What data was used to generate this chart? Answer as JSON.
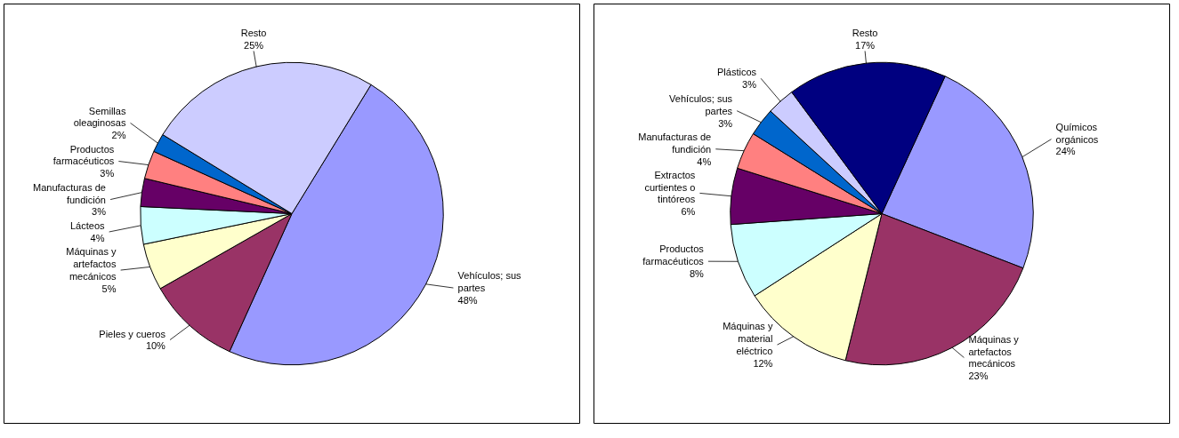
{
  "chart_data": [
    {
      "type": "pie",
      "categories": [
        "Vehículos; sus partes",
        "Pieles y cueros",
        "Máquinas y artefactos mecánicos",
        "Lácteos",
        "Manufacturas de fundición",
        "Productos farmacéuticos",
        "Semillas oleaginosas",
        "Resto"
      ],
      "values": [
        48,
        10,
        5,
        4,
        3,
        3,
        2,
        25
      ],
      "colors": [
        "#9999ff",
        "#993366",
        "#ffffcc",
        "#ccffff",
        "#660066",
        "#ff8080",
        "#0066cc",
        "#ccccff"
      ],
      "value_labels": [
        "48%",
        "10%",
        "5%",
        "4%",
        "3%",
        "3%",
        "2%",
        "25%"
      ]
    },
    {
      "type": "pie",
      "categories": [
        "Químicos orgánicos",
        "Máquinas y artefactos mecánicos",
        "Máquinas y material eléctrico",
        "Productos farmacéuticos",
        "Extractos curtientes o tintóreos",
        "Manufacturas de fundición",
        "Vehículos; sus partes",
        "Plásticos",
        "Resto"
      ],
      "values": [
        24,
        23,
        12,
        8,
        6,
        4,
        3,
        3,
        17
      ],
      "colors": [
        "#9999ff",
        "#993366",
        "#ffffcc",
        "#ccffff",
        "#660066",
        "#ff8080",
        "#0066cc",
        "#ccccff",
        "#000080"
      ],
      "value_labels": [
        "24%",
        "23%",
        "12%",
        "8%",
        "6%",
        "4%",
        "3%",
        "3%",
        "17%"
      ]
    }
  ]
}
